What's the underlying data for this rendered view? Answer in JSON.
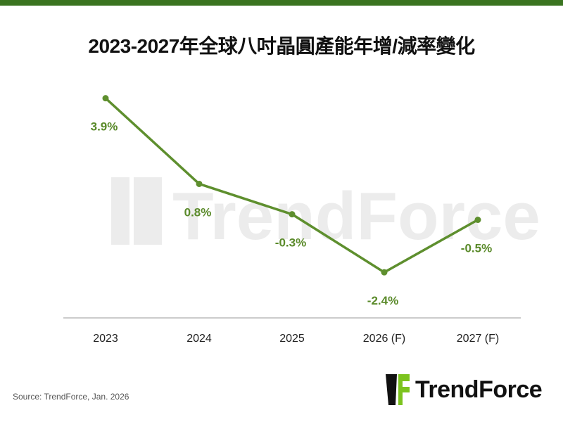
{
  "title": "2023-2027年全球八吋晶圓產能年增/減率變化",
  "source": "Source: TrendForce, Jan. 2026",
  "brand": "TrendForce",
  "colors": {
    "line": "#5e8f2e",
    "label": "#5a8a2a",
    "topbar": "#3a7420",
    "axis": "#999999"
  },
  "chart_data": {
    "type": "line",
    "title": "2023-2027年全球八吋晶圓產能年增/減率變化",
    "categories": [
      "2023",
      "2024",
      "2025",
      "2026 (F)",
      "2027 (F)"
    ],
    "series": [
      {
        "values": [
          3.9,
          0.8,
          -0.3,
          -2.4,
          -0.5
        ]
      }
    ],
    "data_labels": [
      "3.9%",
      "0.8%",
      "-0.3%",
      "-2.4%",
      "-0.5%"
    ],
    "ylim": [
      -4.05,
      4.4
    ],
    "grid": false,
    "watermark": "TrendForce"
  }
}
